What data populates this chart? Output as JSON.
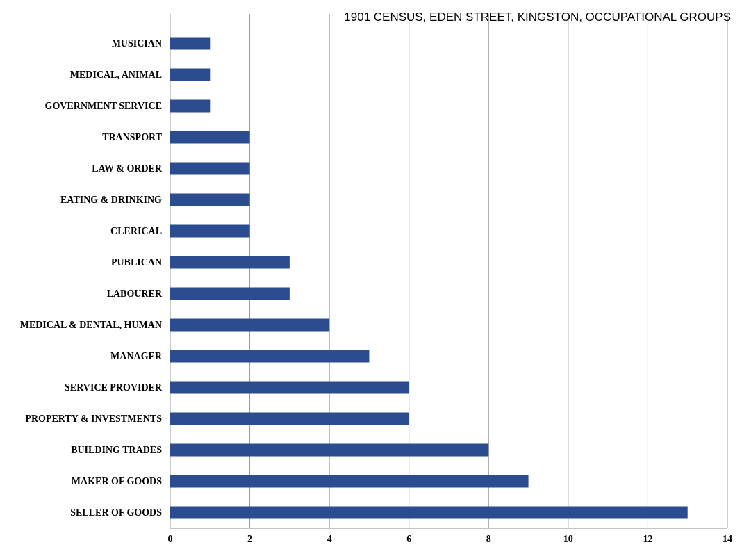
{
  "chart_data": {
    "type": "bar",
    "orientation": "horizontal",
    "title": "1901 CENSUS, EDEN STREET, KINGSTON, OCCUPATIONAL GROUPS",
    "categories": [
      "MUSICIAN",
      "MEDICAL, ANIMAL",
      "GOVERNMENT SERVICE",
      "TRANSPORT",
      "LAW & ORDER",
      "EATING & DRINKING",
      "CLERICAL",
      "PUBLICAN",
      "LABOURER",
      "MEDICAL & DENTAL, HUMAN",
      "MANAGER",
      "SERVICE PROVIDER",
      "PROPERTY & INVESTMENTS",
      "BUILDING TRADES",
      "MAKER OF GOODS",
      "SELLER OF GOODS"
    ],
    "values": [
      1,
      1,
      1,
      2,
      2,
      2,
      2,
      3,
      3,
      4,
      5,
      6,
      6,
      8,
      9,
      13
    ],
    "color": "#2b4c8f",
    "xlim": [
      0,
      14
    ],
    "xticks": [
      0,
      2,
      4,
      6,
      8,
      10,
      12,
      14
    ],
    "grid": "x"
  }
}
